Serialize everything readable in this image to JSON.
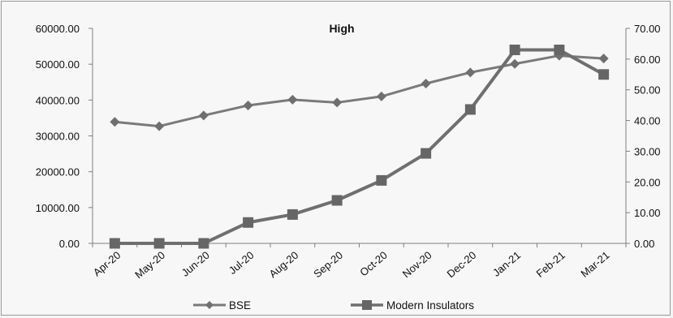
{
  "chart_data": {
    "type": "line",
    "title": "High",
    "categories": [
      "Apr-20",
      "May-20",
      "Jun-20",
      "Jul-20",
      "Aug-20",
      "Sep-20",
      "Oct-20",
      "Nov-20",
      "Dec-20",
      "Jan-21",
      "Feb-21",
      "Mar-21"
    ],
    "series": [
      {
        "name": "BSE",
        "axis": "left",
        "marker": "diamond",
        "color": "#7a7a7a",
        "values": [
          33900,
          32700,
          35700,
          38500,
          40100,
          39300,
          41000,
          44600,
          47700,
          50100,
          52400,
          51600
        ]
      },
      {
        "name": "Modern Insulators",
        "axis": "right",
        "marker": "square",
        "color": "#6f6f6f",
        "values": [
          0.0,
          0.0,
          0.0,
          6.8,
          9.4,
          14.0,
          20.5,
          29.3,
          43.6,
          63.0,
          63.0,
          55.0
        ]
      }
    ],
    "y_left": {
      "min": 0,
      "max": 60000,
      "ticks": [
        "0.00",
        "10000.00",
        "20000.00",
        "30000.00",
        "40000.00",
        "50000.00",
        "60000.00"
      ]
    },
    "y_right": {
      "min": 0,
      "max": 70,
      "ticks": [
        "0.00",
        "10.00",
        "20.00",
        "30.00",
        "40.00",
        "50.00",
        "60.00",
        "70.00"
      ]
    },
    "grid": false,
    "legend_position": "bottom"
  }
}
